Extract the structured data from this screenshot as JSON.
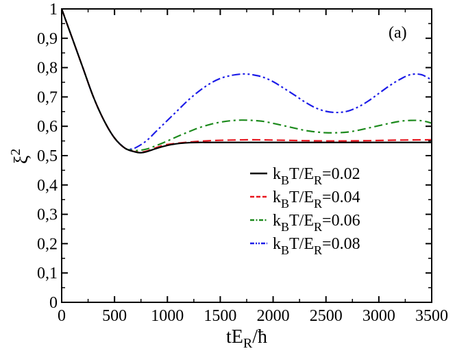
{
  "chart_data": {
    "type": "line",
    "panel_label": "(a)",
    "xlabel": {
      "main": "tE",
      "sub": "R",
      "tail": "/ħ"
    },
    "ylabel": {
      "main": "ξ",
      "sup": "2"
    },
    "xlim": [
      0,
      3500
    ],
    "ylim": [
      0,
      1
    ],
    "x_ticks": [
      {
        "value": 0,
        "label": "0"
      },
      {
        "value": 500,
        "label": "500"
      },
      {
        "value": 1000,
        "label": "1000"
      },
      {
        "value": 1500,
        "label": "1500"
      },
      {
        "value": 2000,
        "label": "2000"
      },
      {
        "value": 2500,
        "label": "2500"
      },
      {
        "value": 3000,
        "label": "3000"
      },
      {
        "value": 3500,
        "label": "3500"
      }
    ],
    "y_ticks": [
      {
        "value": 0,
        "label": "0"
      },
      {
        "value": 0.1,
        "label": "0,1"
      },
      {
        "value": 0.2,
        "label": "0,2"
      },
      {
        "value": 0.3,
        "label": "0,3"
      },
      {
        "value": 0.4,
        "label": "0,4"
      },
      {
        "value": 0.5,
        "label": "0,5"
      },
      {
        "value": 0.6,
        "label": "0,6"
      },
      {
        "value": 0.7,
        "label": "0,7"
      },
      {
        "value": 0.8,
        "label": "0,8"
      },
      {
        "value": 0.9,
        "label": "0,9"
      },
      {
        "value": 1,
        "label": "1"
      }
    ],
    "grid": false,
    "legend_position": "center-right",
    "series": [
      {
        "legend": {
          "a": "k",
          "a_sub": "B",
          "b": "T/E",
          "b_sub": "R",
          "c": "=0.02"
        },
        "color": "#000000",
        "dash": "solid",
        "x": [
          0,
          100,
          200,
          300,
          400,
          500,
          600,
          700,
          750,
          800,
          900,
          1000,
          1100,
          1200,
          1300,
          1400,
          1600,
          2000,
          2500,
          3000,
          3500
        ],
        "y": [
          1.0,
          0.9,
          0.8,
          0.7,
          0.62,
          0.56,
          0.525,
          0.512,
          0.51,
          0.513,
          0.525,
          0.535,
          0.541,
          0.544,
          0.545,
          0.545,
          0.545,
          0.545,
          0.545,
          0.545,
          0.545
        ]
      },
      {
        "legend": {
          "a": "k",
          "a_sub": "B",
          "b": "T/E",
          "b_sub": "R",
          "c": "=0.04"
        },
        "color": "#e8141d",
        "dash": "dashed",
        "x": [
          0,
          100,
          200,
          300,
          400,
          500,
          600,
          700,
          750,
          800,
          900,
          1000,
          1200,
          1400,
          1600,
          1800,
          2000,
          2300,
          2600,
          2900,
          3200,
          3500
        ],
        "y": [
          1.0,
          0.9,
          0.8,
          0.7,
          0.62,
          0.56,
          0.525,
          0.513,
          0.512,
          0.515,
          0.528,
          0.538,
          0.546,
          0.551,
          0.553,
          0.554,
          0.553,
          0.551,
          0.55,
          0.551,
          0.553,
          0.554
        ]
      },
      {
        "legend": {
          "a": "k",
          "a_sub": "B",
          "b": "T/E",
          "b_sub": "R",
          "c": "=0.06"
        },
        "color": "#1c8a1c",
        "dash": "dashdot",
        "x": [
          0,
          100,
          200,
          300,
          400,
          500,
          600,
          650,
          700,
          800,
          900,
          1000,
          1100,
          1200,
          1300,
          1400,
          1500,
          1600,
          1700,
          1800,
          1900,
          2000,
          2100,
          2200,
          2300,
          2400,
          2500,
          2600,
          2700,
          2800,
          2900,
          3000,
          3100,
          3200,
          3300,
          3400,
          3500
        ],
        "y": [
          1.0,
          0.9,
          0.8,
          0.7,
          0.62,
          0.56,
          0.525,
          0.519,
          0.517,
          0.522,
          0.535,
          0.55,
          0.566,
          0.581,
          0.595,
          0.606,
          0.614,
          0.619,
          0.621,
          0.62,
          0.617,
          0.61,
          0.602,
          0.594,
          0.586,
          0.581,
          0.578,
          0.578,
          0.58,
          0.586,
          0.594,
          0.602,
          0.61,
          0.617,
          0.62,
          0.619,
          0.611
        ]
      },
      {
        "legend": {
          "a": "k",
          "a_sub": "B",
          "b": "T/E",
          "b_sub": "R",
          "c": "=0.08"
        },
        "color": "#1c1ce8",
        "dash": "dashdotdot",
        "x": [
          0,
          100,
          200,
          300,
          400,
          500,
          600,
          650,
          700,
          800,
          900,
          1000,
          1100,
          1200,
          1300,
          1400,
          1500,
          1600,
          1700,
          1750,
          1800,
          1900,
          2000,
          2100,
          2200,
          2300,
          2400,
          2500,
          2600,
          2700,
          2800,
          2900,
          3000,
          3100,
          3200,
          3300,
          3400,
          3500
        ],
        "y": [
          1.0,
          0.9,
          0.8,
          0.7,
          0.62,
          0.56,
          0.525,
          0.522,
          0.527,
          0.55,
          0.585,
          0.62,
          0.655,
          0.69,
          0.72,
          0.745,
          0.763,
          0.773,
          0.778,
          0.778,
          0.776,
          0.768,
          0.752,
          0.73,
          0.707,
          0.683,
          0.663,
          0.651,
          0.647,
          0.651,
          0.665,
          0.686,
          0.712,
          0.738,
          0.76,
          0.776,
          0.776,
          0.758
        ]
      }
    ]
  }
}
